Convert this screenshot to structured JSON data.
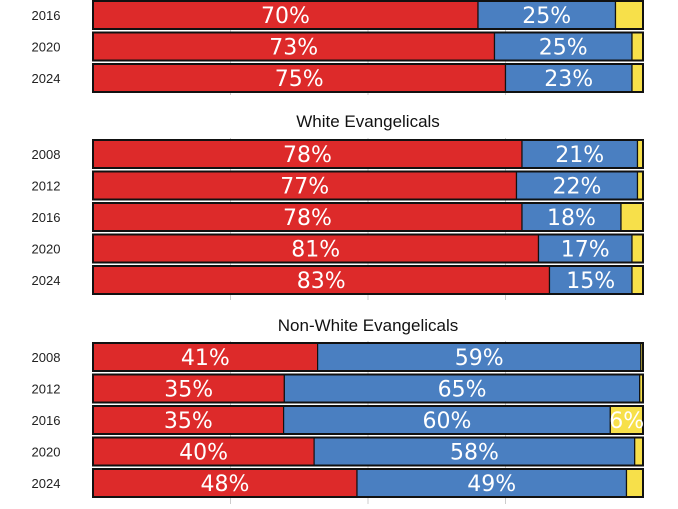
{
  "chart_data": [
    {
      "type": "bar",
      "orientation": "horizontal",
      "stacked": true,
      "title": "",
      "categories": [
        "2016",
        "2020",
        "2024"
      ],
      "series": [
        {
          "values": [
            70,
            73,
            75
          ],
          "labels": [
            "70%",
            "73%",
            "75%"
          ]
        },
        {
          "values": [
            25,
            25,
            23
          ],
          "labels": [
            "25%",
            "25%",
            "23%"
          ]
        },
        {
          "values": [
            5,
            2,
            2
          ],
          "labels": [
            "",
            "",
            ""
          ]
        }
      ]
    },
    {
      "type": "bar",
      "orientation": "horizontal",
      "stacked": true,
      "title": "White Evangelicals",
      "categories": [
        "2008",
        "2012",
        "2016",
        "2020",
        "2024"
      ],
      "series": [
        {
          "values": [
            78,
            77,
            78,
            81,
            83
          ],
          "labels": [
            "78%",
            "77%",
            "78%",
            "81%",
            "83%"
          ]
        },
        {
          "values": [
            21,
            22,
            18,
            17,
            15
          ],
          "labels": [
            "21%",
            "22%",
            "18%",
            "17%",
            "15%"
          ]
        },
        {
          "values": [
            1,
            1,
            4,
            2,
            2
          ],
          "labels": [
            "",
            "",
            "",
            "",
            ""
          ]
        }
      ]
    },
    {
      "type": "bar",
      "orientation": "horizontal",
      "stacked": true,
      "title": "Non-White Evangelicals",
      "categories": [
        "2008",
        "2012",
        "2016",
        "2020",
        "2024"
      ],
      "series": [
        {
          "values": [
            41,
            35,
            35,
            40,
            48
          ],
          "labels": [
            "41%",
            "35%",
            "35%",
            "40%",
            "48%"
          ]
        },
        {
          "values": [
            59,
            65,
            60,
            58,
            49
          ],
          "labels": [
            "59%",
            "65%",
            "60%",
            "58%",
            "49%"
          ]
        },
        {
          "values": [
            0.4,
            0.6,
            6,
            1.5,
            3
          ],
          "labels": [
            "",
            "",
            "6%",
            "",
            ""
          ]
        }
      ]
    }
  ],
  "colors": {
    "series": [
      "#dd2a2a",
      "#4a7fc1",
      "#f7e04a"
    ],
    "gridline": "#cccccc",
    "border": "#111111"
  }
}
